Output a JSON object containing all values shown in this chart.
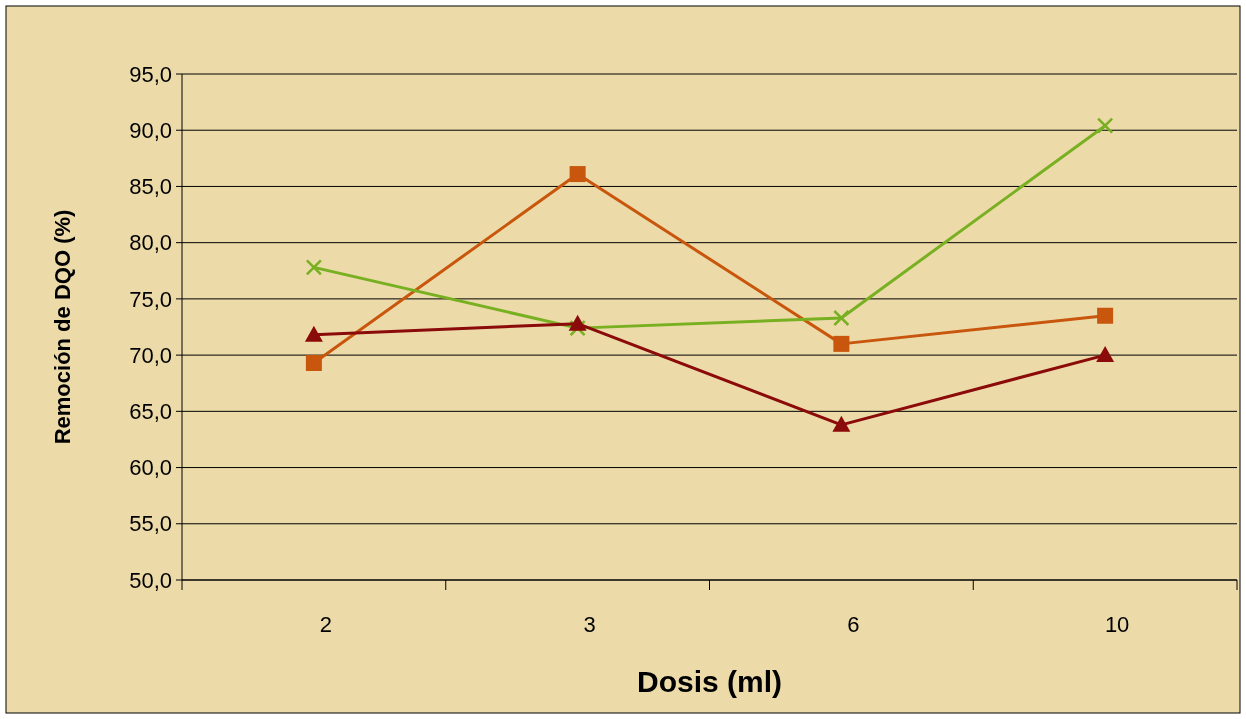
{
  "chart_data": {
    "type": "line",
    "xlabel": "Dosis (ml)",
    "ylabel": "Remoción de DQO (%)",
    "categories": [
      "2",
      "3",
      "6",
      "10"
    ],
    "series": [
      {
        "color": "#c8560c",
        "marker": "square",
        "values": [
          69.3,
          86.1,
          71.0,
          73.5
        ]
      },
      {
        "color": "#78b021",
        "marker": "cross",
        "values": [
          77.8,
          72.4,
          73.3,
          90.4
        ]
      },
      {
        "color": "#8b0a0a",
        "marker": "triangle",
        "values": [
          71.8,
          72.8,
          63.8,
          70.0
        ]
      }
    ],
    "ylim": [
      50,
      95
    ],
    "yticks": [
      {
        "value": 50,
        "label": "50,0"
      },
      {
        "value": 55,
        "label": "55,0"
      },
      {
        "value": 60,
        "label": "60,0"
      },
      {
        "value": 65,
        "label": "65,0"
      },
      {
        "value": 70,
        "label": "70,0"
      },
      {
        "value": 75,
        "label": "75,0"
      },
      {
        "value": 80,
        "label": "80,0"
      },
      {
        "value": 85,
        "label": "85,0"
      },
      {
        "value": 90,
        "label": "90,0"
      },
      {
        "value": 95,
        "label": "95,0"
      }
    ],
    "grid": "y",
    "line_style": "solid"
  }
}
